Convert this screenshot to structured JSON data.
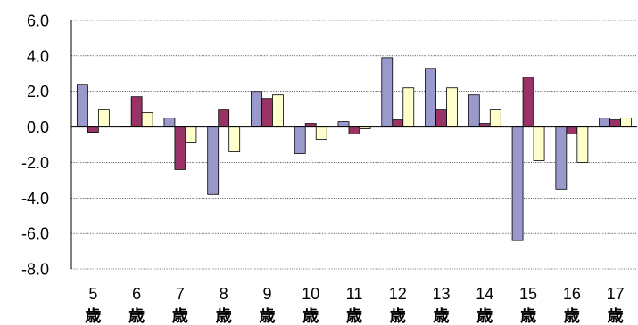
{
  "chart_data": {
    "type": "bar",
    "categories": [
      "5",
      "6",
      "7",
      "8",
      "9",
      "10",
      "11",
      "12",
      "13",
      "14",
      "15",
      "16",
      "17"
    ],
    "category_suffix": "歳",
    "series": [
      {
        "color": "#9999cc",
        "values": [
          2.4,
          0.0,
          0.5,
          -3.8,
          2.0,
          -1.5,
          0.3,
          3.9,
          3.3,
          1.8,
          -6.4,
          -3.5,
          0.5
        ]
      },
      {
        "color": "#993366",
        "values": [
          -0.3,
          1.7,
          -2.4,
          1.0,
          1.6,
          0.2,
          -0.4,
          0.4,
          1.0,
          0.2,
          2.8,
          -0.4,
          0.4
        ]
      },
      {
        "color": "#ffffcc",
        "values": [
          1.0,
          0.8,
          -0.9,
          -1.4,
          1.8,
          -0.7,
          -0.1,
          2.2,
          2.2,
          1.0,
          -1.9,
          -2.0,
          0.5
        ]
      }
    ],
    "yticks": [
      "6.0",
      "4.0",
      "2.0",
      "0.0",
      "-2.0",
      "-4.0",
      "-6.0",
      "-8.0"
    ],
    "ylim": [
      -8,
      6
    ],
    "grid": true,
    "title": "",
    "xlabel": "",
    "ylabel": ""
  }
}
